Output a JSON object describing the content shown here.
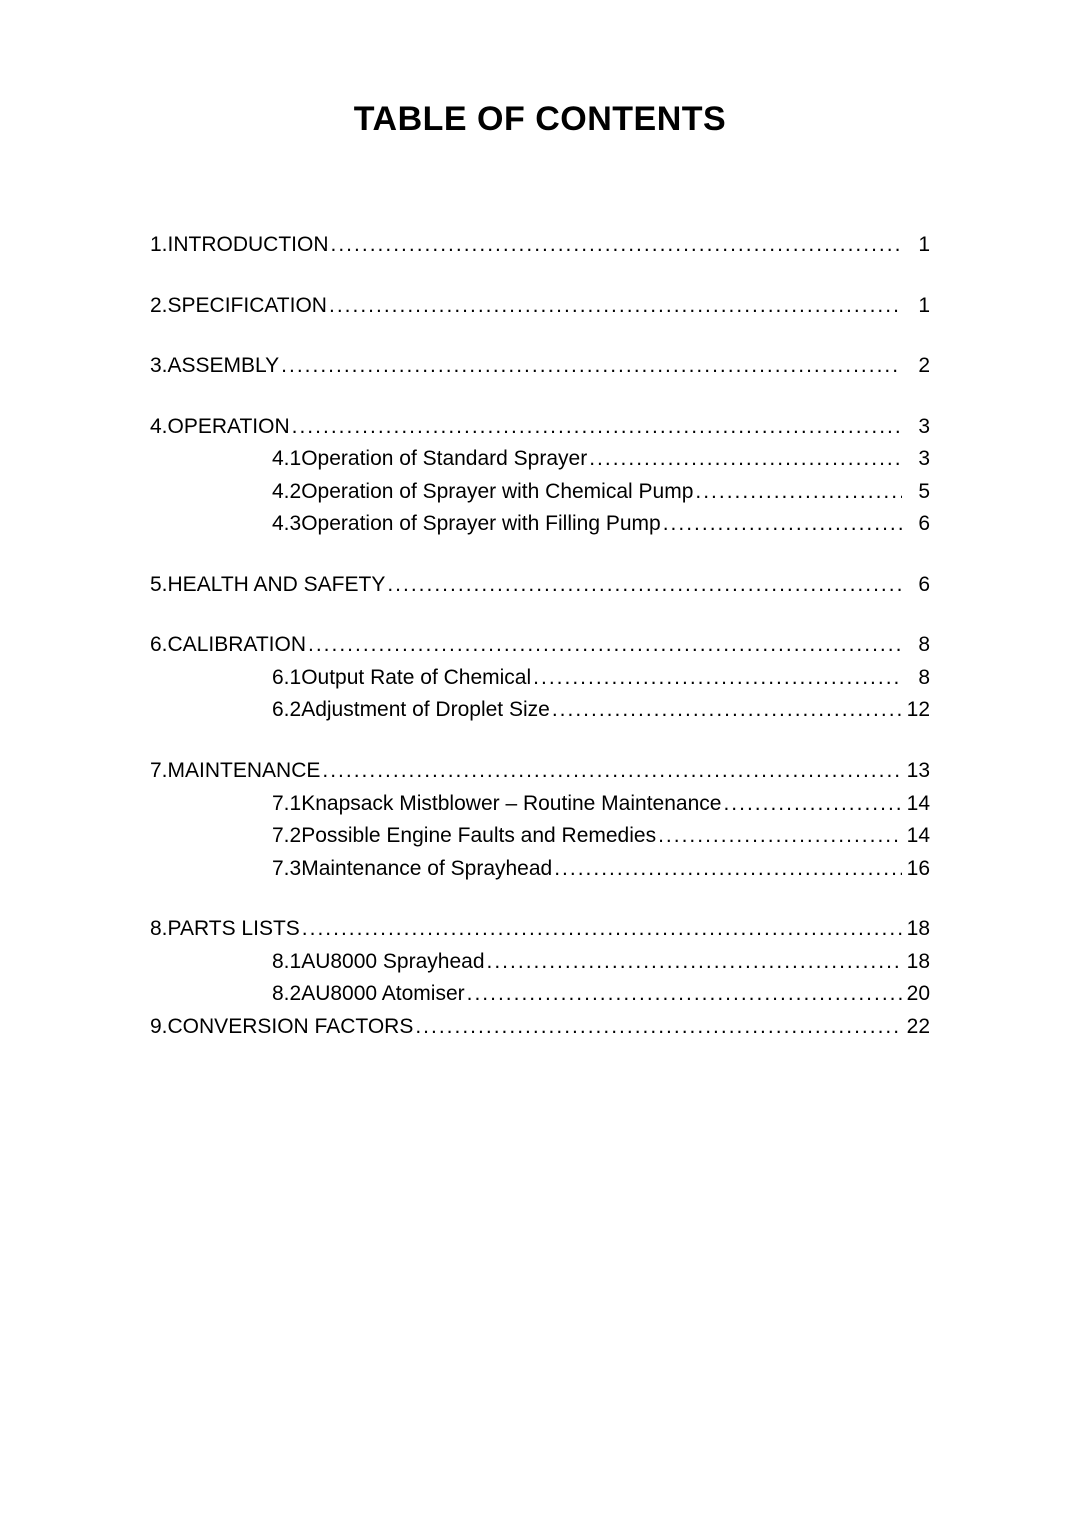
{
  "title": "TABLE OF CONTENTS",
  "leader_dots": "............................................................................................................................................................................................",
  "toc": [
    {
      "level": 0,
      "first": true,
      "nogap": false,
      "num": "1.",
      "label": "INTRODUCTION",
      "page": "1"
    },
    {
      "level": 0,
      "first": false,
      "nogap": false,
      "num": "2.",
      "label": "SPECIFICATION",
      "page": "1"
    },
    {
      "level": 0,
      "first": false,
      "nogap": false,
      "num": "3.",
      "label": "ASSEMBLY",
      "page": "2"
    },
    {
      "level": 0,
      "first": false,
      "nogap": false,
      "num": "4.",
      "label": "OPERATION",
      "page": "3"
    },
    {
      "level": 1,
      "first": false,
      "nogap": false,
      "num": "4.1",
      "label": "Operation of Standard Sprayer",
      "page": "3"
    },
    {
      "level": 1,
      "first": false,
      "nogap": false,
      "num": "4.2",
      "label": "Operation of Sprayer with Chemical Pump",
      "page": "5"
    },
    {
      "level": 1,
      "first": false,
      "nogap": false,
      "num": "4.3",
      "label": "Operation of Sprayer with Filling Pump",
      "page": "6"
    },
    {
      "level": 0,
      "first": false,
      "nogap": false,
      "num": "5.",
      "label": "HEALTH AND SAFETY",
      "page": "6"
    },
    {
      "level": 0,
      "first": false,
      "nogap": false,
      "num": "6.",
      "label": "CALIBRATION",
      "page": "8"
    },
    {
      "level": 1,
      "first": false,
      "nogap": false,
      "num": "6.1",
      "label": "Output Rate of Chemical",
      "page": "8"
    },
    {
      "level": 1,
      "first": false,
      "nogap": false,
      "num": "6.2",
      "label": "Adjustment of Droplet Size",
      "page": "12"
    },
    {
      "level": 0,
      "first": false,
      "nogap": false,
      "num": "7.",
      "label": "MAINTENANCE",
      "page": "13"
    },
    {
      "level": 1,
      "first": false,
      "nogap": false,
      "num": "7.1",
      "label": "Knapsack Mistblower – Routine Maintenance",
      "page": "14"
    },
    {
      "level": 1,
      "first": false,
      "nogap": false,
      "num": "7.2",
      "label": "Possible Engine Faults and Remedies",
      "page": "14"
    },
    {
      "level": 1,
      "first": false,
      "nogap": false,
      "num": "7.3",
      "label": "Maintenance of Sprayhead",
      "page": "16"
    },
    {
      "level": 0,
      "first": false,
      "nogap": false,
      "num": "8.",
      "label": "PARTS LISTS",
      "page": "18"
    },
    {
      "level": 1,
      "first": false,
      "nogap": false,
      "num": "8.1",
      "label": "AU8000 Sprayhead",
      "page": "18"
    },
    {
      "level": 1,
      "first": false,
      "nogap": false,
      "num": "8.2",
      "label": "AU8000 Atomiser",
      "page": "20"
    },
    {
      "level": 0,
      "first": false,
      "nogap": true,
      "num": "9.",
      "label": "CONVERSION FACTORS",
      "page": "22"
    }
  ]
}
